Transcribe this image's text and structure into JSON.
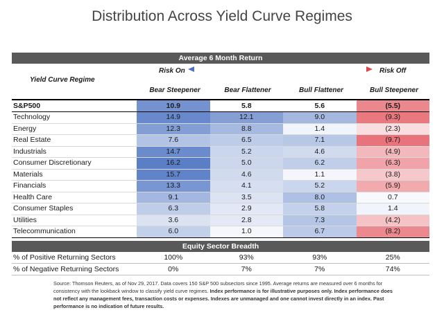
{
  "title": "Distribution Across Yield Curve Regimes",
  "header": {
    "bar_title": "Average 6 Month Return",
    "regime_label": "Yield Curve Regime",
    "risk_on": "Risk On",
    "risk_off": "Risk Off",
    "columns": [
      "Bear Steepener",
      "Bear Flattener",
      "Bull Flattener",
      "Bull Steepener"
    ]
  },
  "colors": {
    "blue_strong": "#5b7fc7",
    "red_strong": "#e8737a",
    "header_bar": "#595959"
  },
  "chart_data": {
    "type": "table",
    "title": "Distribution Across Yield Curve Regimes",
    "columns": [
      "Bear Steepener",
      "Bear Flattener",
      "Bull Flattener",
      "Bull Steepener"
    ],
    "rows": [
      {
        "label": "S&P500",
        "values": [
          10.9,
          5.8,
          5.6,
          -5.5
        ],
        "display": [
          "10.9",
          "5.8",
          "5.6",
          "(5.5)"
        ]
      },
      {
        "label": "Technology",
        "values": [
          14.9,
          12.1,
          9.0,
          -9.3
        ],
        "display": [
          "14.9",
          "12.1",
          "9.0",
          "(9.3)"
        ]
      },
      {
        "label": "Energy",
        "values": [
          12.3,
          8.8,
          1.4,
          -2.3
        ],
        "display": [
          "12.3",
          "8.8",
          "1.4",
          "(2.3)"
        ]
      },
      {
        "label": "Real Estate",
        "values": [
          7.6,
          6.5,
          7.1,
          -9.7
        ],
        "display": [
          "7.6",
          "6.5",
          "7.1",
          "(9.7)"
        ]
      },
      {
        "label": "Industrials",
        "values": [
          14.7,
          5.2,
          4.6,
          -4.9
        ],
        "display": [
          "14.7",
          "5.2",
          "4.6",
          "(4.9)"
        ]
      },
      {
        "label": "Consumer Discretionary",
        "values": [
          16.2,
          5.0,
          6.2,
          -6.3
        ],
        "display": [
          "16.2",
          "5.0",
          "6.2",
          "(6.3)"
        ]
      },
      {
        "label": "Materials",
        "values": [
          15.7,
          4.6,
          1.1,
          -3.8
        ],
        "display": [
          "15.7",
          "4.6",
          "1.1",
          "(3.8)"
        ]
      },
      {
        "label": "Financials",
        "values": [
          13.3,
          4.1,
          5.2,
          -5.9
        ],
        "display": [
          "13.3",
          "4.1",
          "5.2",
          "(5.9)"
        ]
      },
      {
        "label": "Health Care",
        "values": [
          9.1,
          3.5,
          8.0,
          0.7
        ],
        "display": [
          "9.1",
          "3.5",
          "8.0",
          "0.7"
        ]
      },
      {
        "label": "Consumer Staples",
        "values": [
          6.3,
          2.9,
          5.8,
          1.4
        ],
        "display": [
          "6.3",
          "2.9",
          "5.8",
          "1.4"
        ]
      },
      {
        "label": "Utilities",
        "values": [
          3.6,
          2.8,
          7.3,
          -4.2
        ],
        "display": [
          "3.6",
          "2.8",
          "7.3",
          "(4.2)"
        ]
      },
      {
        "label": "Telecommunication",
        "values": [
          6.0,
          1.0,
          6.7,
          -8.2
        ],
        "display": [
          "6.0",
          "1.0",
          "6.7",
          "(8.2)"
        ]
      }
    ],
    "breadth_title": "Equity Sector Breadth",
    "breadth_rows": [
      {
        "label": "% of Positive Returning Sectors",
        "display": [
          "100%",
          "93%",
          "93%",
          "25%"
        ]
      },
      {
        "label": "% of Negative Returning Sectors",
        "display": [
          "0%",
          "7%",
          "7%",
          "74%"
        ]
      }
    ]
  },
  "source_text": "Source: Thomson Reuters, as of Nov 29, 2017. Data covers 150 S&P 500 subsectors since 1995. Average returns are measured over 6 months for consistency with the lookback window to classify yield curve regimes.",
  "source_bold": "Index performance is for illustrative purposes only. Index performance does not reflect any management fees, transaction costs or expenses. Indexes are unmanaged and one cannot invest directly in an index. Past performance is no indication of future results."
}
